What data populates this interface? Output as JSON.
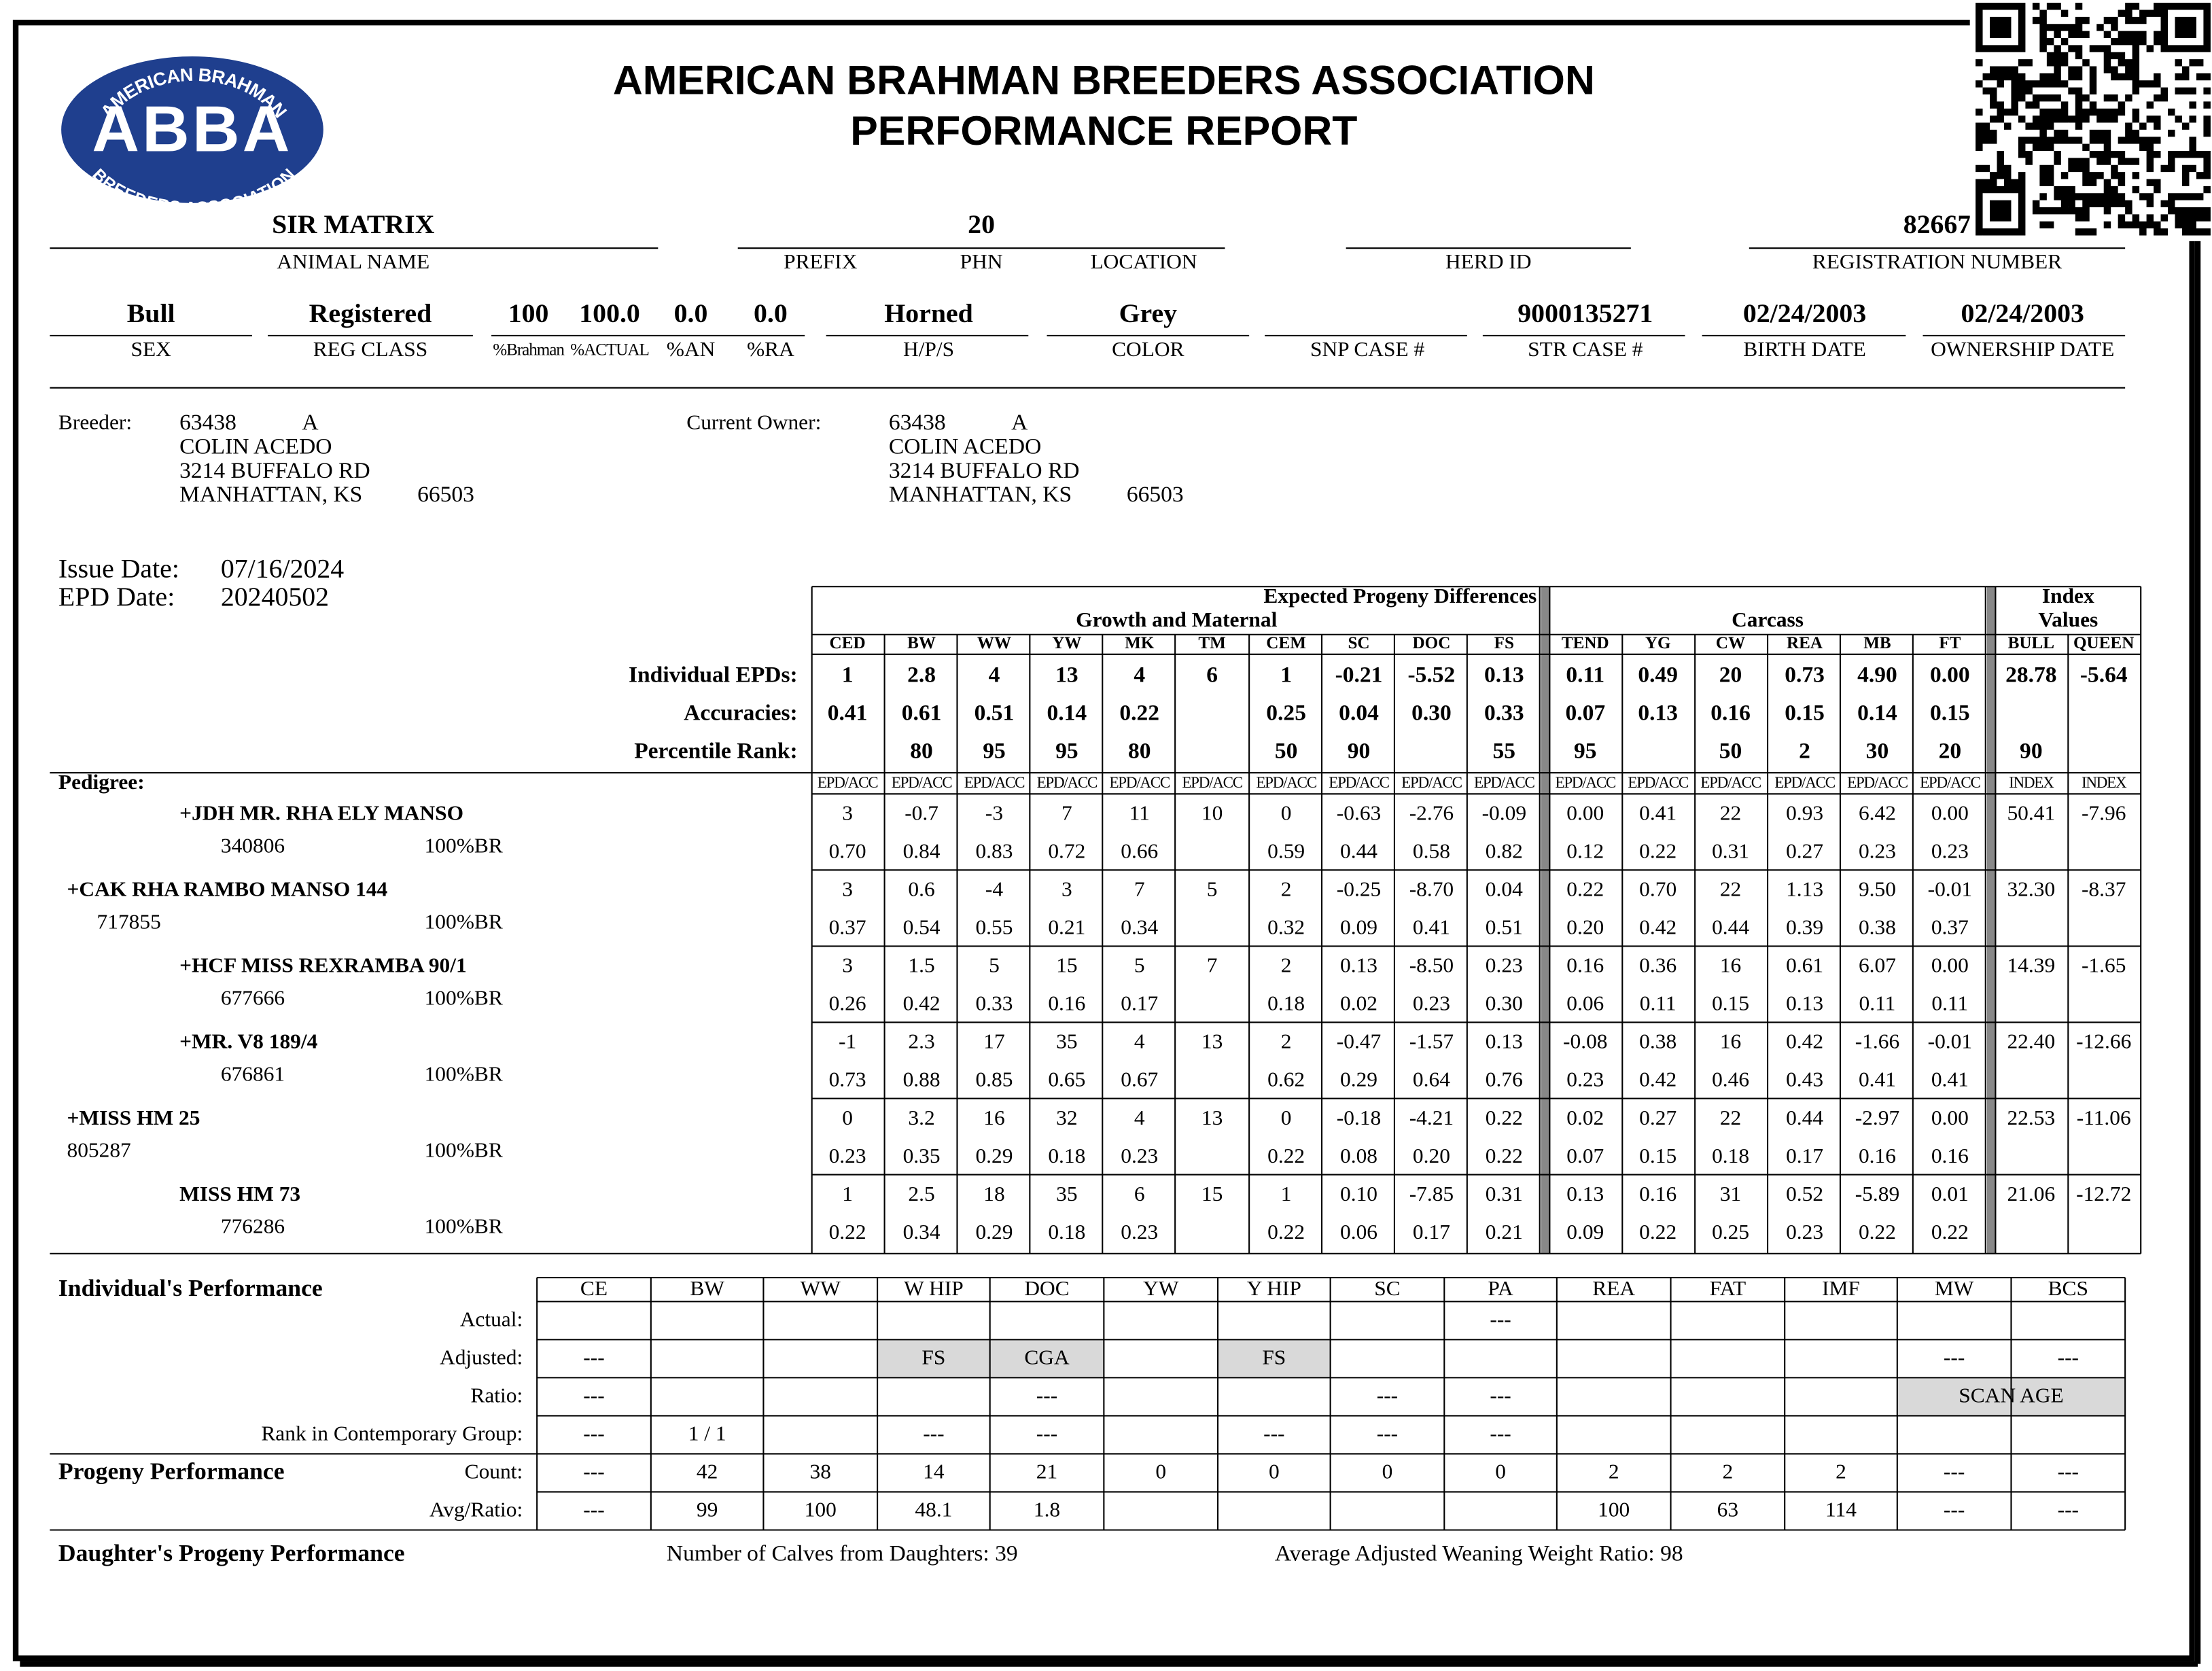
{
  "header": {
    "logo_top": "AMERICAN BRAHMAN",
    "logo_mark": "ABBA",
    "logo_bottom": "BREEDERS ASSOCIATION",
    "title": "AMERICAN BRAHMAN BREEDERS ASSOCIATION",
    "subtitle": "PERFORMANCE REPORT"
  },
  "animal": {
    "row1": {
      "labels": [
        "ANIMAL NAME",
        "PREFIX",
        "PHN",
        "LOCATION",
        "HERD ID",
        "REGISTRATION NUMBER"
      ],
      "values": [
        "SIR MATRIX",
        "20",
        "82667"
      ]
    },
    "row2": {
      "labels": [
        "SEX",
        "REG CLASS",
        "%Brahman",
        "%ACTUAL",
        "%AN",
        "%RA",
        "H/P/S",
        "COLOR",
        "SNP CASE #",
        "STR CASE #",
        "BIRTH DATE",
        "OWNERSHIP DATE"
      ],
      "values": [
        "Bull",
        "Registered",
        "100",
        "100.0",
        "0.0",
        "0.0",
        "Horned",
        "Grey",
        "9000135271",
        "02/24/2003",
        "02/24/2003"
      ]
    }
  },
  "breeder": {
    "label": "Breeder:",
    "id": "63438",
    "code": "A",
    "name": "COLIN ACEDO",
    "street": "3214 BUFFALO RD",
    "city": "MANHATTAN, KS",
    "zip": "66503"
  },
  "owner": {
    "label": "Current Owner:",
    "id": "63438",
    "code": "A",
    "name": "COLIN ACEDO",
    "street": "3214 BUFFALO RD",
    "city": "MANHATTAN, KS",
    "zip": "66503"
  },
  "dates": [
    {
      "label": "Issue Date:",
      "value": "07/16/2024"
    },
    {
      "label": "EPD Date:",
      "value": "20240502"
    }
  ],
  "epd": {
    "title": "Expected Progeny Differences",
    "groups": [
      "Growth and Maternal",
      "Carcass"
    ],
    "index_title": [
      "Index",
      "Values"
    ],
    "columns": [
      "CED",
      "BW",
      "WW",
      "YW",
      "MK",
      "TM",
      "CEM",
      "SC",
      "DOC",
      "FS",
      "TEND",
      "YG",
      "CW",
      "REA",
      "MB",
      "FT",
      "BULL",
      "QUEEN"
    ],
    "rows": [
      {
        "label": "Individual EPDs:",
        "values": [
          "1",
          "2.8",
          "4",
          "13",
          "4",
          "6",
          "1",
          "-0.21",
          "-5.52",
          "0.13",
          "0.11",
          "0.49",
          "20",
          "0.73",
          "4.90",
          "0.00",
          "28.78",
          "-5.64"
        ]
      },
      {
        "label": "Accuracies:",
        "values": [
          "0.41",
          "0.61",
          "0.51",
          "0.14",
          "0.22",
          null,
          "0.25",
          "0.04",
          "0.30",
          "0.33",
          "0.07",
          "0.13",
          "0.16",
          "0.15",
          "0.14",
          "0.15",
          null,
          null
        ]
      },
      {
        "label": "Percentile Rank:",
        "values": [
          null,
          "80",
          "95",
          "95",
          "80",
          null,
          "50",
          "90",
          null,
          "55",
          "95",
          null,
          "50",
          "2",
          "30",
          "20",
          "90",
          null
        ]
      }
    ],
    "pedigree_label": "Pedigree:",
    "subheaders": [
      "EPD/ACC",
      "EPD/ACC",
      "EPD/ACC",
      "EPD/ACC",
      "EPD/ACC",
      "EPD/ACC",
      "EPD/ACC",
      "EPD/ACC",
      "EPD/ACC",
      "EPD/ACC",
      "EPD/ACC",
      "EPD/ACC",
      "EPD/ACC",
      "EPD/ACC",
      "EPD/ACC",
      "EPD/ACC",
      "INDEX",
      "INDEX"
    ],
    "pedigree": [
      {
        "name": "+JDH MR. RHA ELY MANSO",
        "reg": "340806",
        "breed": "100%BR",
        "epd": [
          "3",
          "-0.7",
          "-3",
          "7",
          "11",
          "10",
          "0",
          "-0.63",
          "-2.76",
          "-0.09",
          "0.00",
          "0.41",
          "22",
          "0.93",
          "6.42",
          "0.00",
          "50.41",
          "-7.96"
        ],
        "acc": [
          "0.70",
          "0.84",
          "0.83",
          "0.72",
          "0.66",
          null,
          "0.59",
          "0.44",
          "0.58",
          "0.82",
          "0.12",
          "0.22",
          "0.31",
          "0.27",
          "0.23",
          "0.23",
          null,
          null
        ]
      },
      {
        "name": "+CAK RHA RAMBO MANSO 144",
        "reg": "717855",
        "breed": "100%BR",
        "epd": [
          "3",
          "0.6",
          "-4",
          "3",
          "7",
          "5",
          "2",
          "-0.25",
          "-8.70",
          "0.04",
          "0.22",
          "0.70",
          "22",
          "1.13",
          "9.50",
          "-0.01",
          "32.30",
          "-8.37"
        ],
        "acc": [
          "0.37",
          "0.54",
          "0.55",
          "0.21",
          "0.34",
          null,
          "0.32",
          "0.09",
          "0.41",
          "0.51",
          "0.20",
          "0.42",
          "0.44",
          "0.39",
          "0.38",
          "0.37",
          null,
          null
        ]
      },
      {
        "name": "+HCF MISS REXRAMBA 90/1",
        "reg": "677666",
        "breed": "100%BR",
        "epd": [
          "3",
          "1.5",
          "5",
          "15",
          "5",
          "7",
          "2",
          "0.13",
          "-8.50",
          "0.23",
          "0.16",
          "0.36",
          "16",
          "0.61",
          "6.07",
          "0.00",
          "14.39",
          "-1.65"
        ],
        "acc": [
          "0.26",
          "0.42",
          "0.33",
          "0.16",
          "0.17",
          null,
          "0.18",
          "0.02",
          "0.23",
          "0.30",
          "0.06",
          "0.11",
          "0.15",
          "0.13",
          "0.11",
          "0.11",
          null,
          null
        ]
      },
      {
        "name": "+MR. V8 189/4",
        "reg": "676861",
        "breed": "100%BR",
        "epd": [
          "-1",
          "2.3",
          "17",
          "35",
          "4",
          "13",
          "2",
          "-0.47",
          "-1.57",
          "0.13",
          "-0.08",
          "0.38",
          "16",
          "0.42",
          "-1.66",
          "-0.01",
          "22.40",
          "-12.66"
        ],
        "acc": [
          "0.73",
          "0.88",
          "0.85",
          "0.65",
          "0.67",
          null,
          "0.62",
          "0.29",
          "0.64",
          "0.76",
          "0.23",
          "0.42",
          "0.46",
          "0.43",
          "0.41",
          "0.41",
          null,
          null
        ]
      },
      {
        "name": "+MISS HM 25",
        "reg": "805287",
        "breed": "100%BR",
        "epd": [
          "0",
          "3.2",
          "16",
          "32",
          "4",
          "13",
          "0",
          "-0.18",
          "-4.21",
          "0.22",
          "0.02",
          "0.27",
          "22",
          "0.44",
          "-2.97",
          "0.00",
          "22.53",
          "-11.06"
        ],
        "acc": [
          "0.23",
          "0.35",
          "0.29",
          "0.18",
          "0.23",
          null,
          "0.22",
          "0.08",
          "0.20",
          "0.22",
          "0.07",
          "0.15",
          "0.18",
          "0.17",
          "0.16",
          "0.16",
          null,
          null
        ]
      },
      {
        "name": "MISS HM 73",
        "reg": "776286",
        "breed": "100%BR",
        "epd": [
          "1",
          "2.5",
          "18",
          "35",
          "6",
          "15",
          "1",
          "0.10",
          "-7.85",
          "0.31",
          "0.13",
          "0.16",
          "31",
          "0.52",
          "-5.89",
          "0.01",
          "21.06",
          "-12.72"
        ],
        "acc": [
          "0.22",
          "0.34",
          "0.29",
          "0.18",
          "0.23",
          null,
          "0.22",
          "0.06",
          "0.17",
          "0.21",
          "0.09",
          "0.22",
          "0.25",
          "0.23",
          "0.22",
          "0.22",
          null,
          null
        ]
      }
    ]
  },
  "performance": {
    "title": "Individual's Performance",
    "columns": [
      "CE",
      "BW",
      "WW",
      "W HIP",
      "DOC",
      "YW",
      "Y HIP",
      "SC",
      "PA",
      "REA",
      "FAT",
      "IMF",
      "MW",
      "BCS"
    ],
    "rows": [
      {
        "label": "Actual:",
        "values": [
          null,
          null,
          null,
          null,
          null,
          null,
          null,
          null,
          "---",
          null,
          null,
          null,
          null,
          null
        ]
      },
      {
        "label": "Adjusted:",
        "values": [
          "---",
          null,
          null,
          "FS",
          "CGA",
          null,
          "FS",
          null,
          null,
          null,
          null,
          null,
          "---",
          "---"
        ]
      },
      {
        "label": "Ratio:",
        "values": [
          "---",
          null,
          null,
          null,
          "---",
          null,
          null,
          "---",
          "---",
          null,
          null,
          null,
          "SCAN AGE",
          null
        ]
      },
      {
        "label": "Rank in Contemporary Group:",
        "values": [
          "---",
          "1 / 1",
          null,
          "---",
          "---",
          null,
          "---",
          "---",
          "---",
          null,
          null,
          null,
          null,
          null
        ]
      }
    ],
    "progeny_title": "Progeny Performance",
    "progeny_rows": [
      {
        "label": "Count:",
        "values": [
          "---",
          "42",
          "38",
          "14",
          "21",
          "0",
          "0",
          "0",
          "0",
          "2",
          "2",
          "2",
          "---",
          "---"
        ]
      },
      {
        "label": "Avg/Ratio:",
        "values": [
          "---",
          "99",
          "100",
          "48.1",
          "1.8",
          null,
          null,
          null,
          null,
          "100",
          "63",
          "114",
          "---",
          "---"
        ]
      }
    ]
  },
  "daughters": {
    "title": "Daughter's Progeny Performance",
    "calves": "Number of Calves from Daughters: 39",
    "ratio": "Average Adjusted Weaning Weight Ratio: 98"
  }
}
